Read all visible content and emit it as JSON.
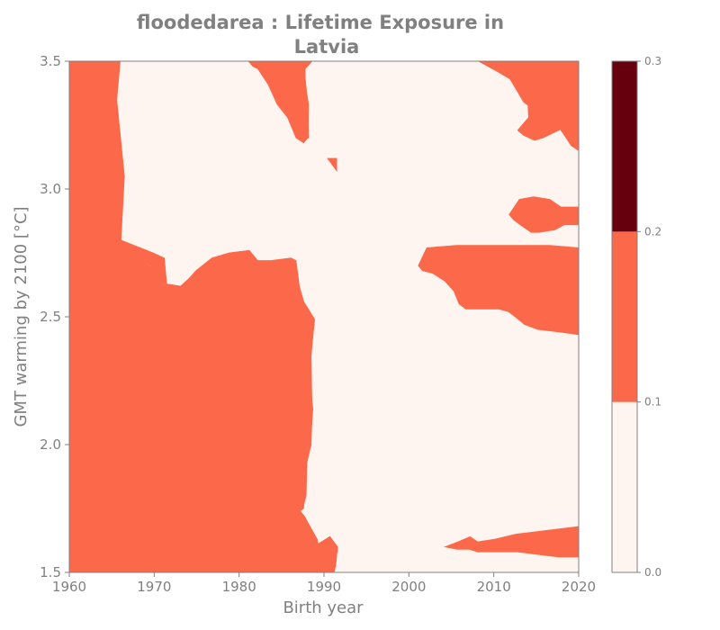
{
  "chart_data": {
    "type": "heatmap",
    "subtype": "filled-contour",
    "title_lines": [
      "floodedarea : Lifetime Exposure in",
      "Latvia"
    ],
    "xlabel": "Birth year",
    "ylabel": "GMT warming by 2100 [°C]",
    "xlim": [
      1960,
      2020
    ],
    "ylim": [
      1.5,
      3.5
    ],
    "xticks": [
      1960,
      1970,
      1980,
      1990,
      2000,
      2010,
      2020
    ],
    "yticks": [
      1.5,
      2.0,
      2.5,
      3.0,
      3.5
    ],
    "xtick_labels": [
      "1960",
      "1970",
      "1980",
      "1990",
      "2000",
      "2010",
      "2020"
    ],
    "ytick_labels": [
      "1.5",
      "2.0",
      "2.5",
      "3.0",
      "3.5"
    ],
    "colorbar": {
      "levels": [
        0.0,
        0.1,
        0.2,
        0.3
      ],
      "tick_labels": [
        "0.0",
        "0.1",
        "0.2",
        "0.3"
      ],
      "colors": [
        "#fff5f0",
        "#fb694a",
        "#67000d"
      ]
    },
    "background_level_color": "#fff5f0",
    "regions": [
      {
        "level": "0.1-0.2",
        "color": "#fb694a",
        "points": [
          [
            1960,
            3.5
          ],
          [
            1965.9,
            3.5
          ],
          [
            1965.6,
            3.35
          ],
          [
            1965.7,
            3.2
          ],
          [
            1966.1,
            3.05
          ],
          [
            1966.1,
            2.78
          ],
          [
            1968,
            2.73
          ],
          [
            1969.6,
            2.7
          ],
          [
            1970.2,
            2.63
          ],
          [
            1971.1,
            2.63
          ],
          [
            1973.1,
            2.62
          ],
          [
            1974.1,
            2.65
          ],
          [
            1974.9,
            2.68
          ],
          [
            1976.8,
            2.73
          ],
          [
            1978.8,
            2.75
          ],
          [
            1981.2,
            2.76
          ],
          [
            1982.1,
            2.72
          ],
          [
            1983.7,
            2.72
          ],
          [
            1986.1,
            2.73
          ],
          [
            1986.7,
            2.72
          ],
          [
            1987.1,
            2.62
          ],
          [
            1987.6,
            2.56
          ],
          [
            1988.9,
            2.49
          ],
          [
            1988.6,
            2.4
          ],
          [
            1988.3,
            2.26
          ],
          [
            1988.7,
            2.14
          ],
          [
            1988.4,
            2.0
          ],
          [
            1988.1,
            1.97
          ],
          [
            1987.9,
            1.89
          ],
          [
            1987.6,
            1.75
          ],
          [
            1987.2,
            1.74
          ],
          [
            1987.7,
            1.72
          ],
          [
            1989.2,
            1.63
          ],
          [
            1989.3,
            1.61
          ],
          [
            1990.7,
            1.64
          ],
          [
            1991.6,
            1.6
          ],
          [
            1991.6,
            1.58
          ],
          [
            1990.4,
            1.52
          ],
          [
            1989.2,
            1.5
          ],
          [
            1967.3,
            1.5
          ],
          [
            1967.3,
            1.6
          ],
          [
            1966.8,
            1.66
          ],
          [
            1966.2,
            1.78
          ],
          [
            1966,
            1.87
          ],
          [
            1966.5,
            1.97
          ],
          [
            1967.1,
            2.0
          ],
          [
            1968.1,
            2.09
          ],
          [
            1969.1,
            2.17
          ],
          [
            1970,
            2.2
          ],
          [
            1970.4,
            2.24
          ],
          [
            1970.9,
            2.37
          ],
          [
            1971.2,
            2.5
          ],
          [
            1971.5,
            2.62
          ],
          [
            1971.2,
            2.73
          ],
          [
            1969.9,
            2.75
          ],
          [
            1966.1,
            2.8
          ],
          [
            1966.5,
            3.05
          ],
          [
            1965.6,
            3.35
          ],
          [
            1966,
            3.5
          ],
          [
            1960,
            3.5
          ]
        ]
      },
      {
        "level": "0.1-0.2",
        "color": "#fb694a",
        "points": [
          [
            1960,
            1.5
          ],
          [
            1967.9,
            1.5
          ],
          [
            1968.2,
            1.61
          ],
          [
            1966.9,
            1.72
          ],
          [
            1966.2,
            1.82
          ],
          [
            1966.2,
            1.92
          ],
          [
            1966.8,
            1.98
          ],
          [
            1967.6,
            2.01
          ],
          [
            1968.8,
            2.07
          ],
          [
            1969.6,
            2.12
          ],
          [
            1970.4,
            2.2
          ],
          [
            1970.6,
            2.29
          ],
          [
            1971.2,
            2.36
          ],
          [
            1971.5,
            2.43
          ],
          [
            1971.2,
            2.5
          ],
          [
            1971.4,
            2.6
          ],
          [
            1971.1,
            2.63
          ],
          [
            1969.9,
            2.69
          ],
          [
            1968.5,
            2.72
          ],
          [
            1966.1,
            2.78
          ],
          [
            1966.1,
            3.05
          ],
          [
            1965.6,
            3.35
          ],
          [
            1965.9,
            3.5
          ],
          [
            1960,
            3.5
          ],
          [
            1960,
            1.5
          ]
        ]
      },
      {
        "level": "0.1-0.2",
        "color": "#fb694a",
        "points": [
          [
            1971.2,
            2.63
          ],
          [
            1973.1,
            2.62
          ],
          [
            1974.2,
            2.65
          ],
          [
            1974.9,
            2.68
          ],
          [
            1976.8,
            2.73
          ],
          [
            1978.8,
            2.75
          ],
          [
            1981.2,
            2.76
          ],
          [
            1982.2,
            2.72
          ],
          [
            1983.7,
            2.72
          ],
          [
            1986.1,
            2.73
          ],
          [
            1986.7,
            2.72
          ],
          [
            1987.1,
            2.62
          ],
          [
            1987.6,
            2.56
          ],
          [
            1988.9,
            2.49
          ],
          [
            1988.5,
            2.35
          ],
          [
            1988.6,
            2.13
          ],
          [
            1988.5,
            2.0
          ],
          [
            1988,
            1.93
          ],
          [
            1987.9,
            1.8
          ],
          [
            1987.5,
            1.75
          ],
          [
            1985.6,
            1.73
          ],
          [
            1984.5,
            1.77
          ],
          [
            1983.6,
            1.77
          ],
          [
            1982.9,
            1.75
          ],
          [
            1982.2,
            1.78
          ],
          [
            1980.2,
            1.78
          ],
          [
            1978.5,
            1.78
          ],
          [
            1978.2,
            1.75
          ],
          [
            1977.5,
            1.7
          ],
          [
            1976.8,
            1.64
          ],
          [
            1974.6,
            1.6
          ],
          [
            1975.8,
            1.54
          ],
          [
            1976.8,
            1.51
          ],
          [
            1978.5,
            1.52
          ],
          [
            1980.4,
            1.53
          ],
          [
            1982.2,
            1.5
          ],
          [
            1984.1,
            1.53
          ],
          [
            1985.6,
            1.5
          ],
          [
            1987.9,
            1.5
          ],
          [
            1987.6,
            1.58
          ],
          [
            1987.6,
            1.67
          ],
          [
            1986.2,
            1.72
          ],
          [
            1985.3,
            1.74
          ],
          [
            1984.1,
            1.77
          ],
          [
            1983.3,
            1.7
          ],
          [
            1982.8,
            1.8
          ],
          [
            1982.2,
            1.86
          ],
          [
            1981.6,
            1.82
          ],
          [
            1980.6,
            1.8
          ],
          [
            1979.9,
            1.85
          ],
          [
            1979.2,
            1.89
          ],
          [
            1978.2,
            1.92
          ],
          [
            1977.2,
            1.95
          ],
          [
            1976.2,
            1.97
          ],
          [
            1974.6,
            1.98
          ],
          [
            1972.6,
            2.0
          ],
          [
            1971.5,
            2.0
          ],
          [
            1971,
            2.06
          ],
          [
            1970.9,
            2.2
          ],
          [
            1971.2,
            2.45
          ],
          [
            1971.2,
            2.63
          ]
        ]
      },
      {
        "level": "0.1-0.2",
        "color": "#fb694a",
        "points": [
          [
            1974.6,
            1.6
          ],
          [
            1976.9,
            1.76
          ],
          [
            1979.9,
            1.78
          ],
          [
            1982.7,
            1.68
          ],
          [
            1985.3,
            1.7
          ],
          [
            1986.9,
            1.72
          ],
          [
            1987.9,
            1.65
          ],
          [
            1989.2,
            1.61
          ],
          [
            1990.7,
            1.64
          ],
          [
            1991.6,
            1.6
          ],
          [
            1991.4,
            1.53
          ],
          [
            1991.2,
            1.5
          ],
          [
            1989.2,
            1.5
          ],
          [
            1989.2,
            1.55
          ],
          [
            1988.3,
            1.5
          ],
          [
            1983.8,
            1.5
          ],
          [
            1982.2,
            1.5
          ],
          [
            1980.3,
            1.53
          ],
          [
            1978.5,
            1.52
          ],
          [
            1976.8,
            1.51
          ],
          [
            1975.8,
            1.54
          ],
          [
            1974.6,
            1.6
          ]
        ]
      },
      {
        "level": "0.1-0.2",
        "color": "#fb694a",
        "points": [
          [
            1981.1,
            3.5
          ],
          [
            1988.6,
            3.5
          ],
          [
            1987.8,
            3.47
          ],
          [
            1987.8,
            3.41
          ],
          [
            1988.2,
            3.33
          ],
          [
            1988.1,
            3.2
          ],
          [
            1987.6,
            3.18
          ],
          [
            1986.7,
            3.2
          ],
          [
            1985.7,
            3.28
          ],
          [
            1984.5,
            3.33
          ],
          [
            1983.4,
            3.41
          ],
          [
            1982.2,
            3.47
          ],
          [
            1981.6,
            3.48
          ],
          [
            1981.1,
            3.5
          ]
        ]
      },
      {
        "level": "0.1-0.2",
        "color": "#fb694a",
        "points": [
          [
            1981.1,
            3.5
          ],
          [
            1987.6,
            3.5
          ],
          [
            1988.1,
            3.33
          ],
          [
            1988.2,
            3.2
          ],
          [
            1987.5,
            3.19
          ],
          [
            1987.1,
            3.23
          ],
          [
            1985.8,
            3.3
          ],
          [
            1984.6,
            3.36
          ],
          [
            1983.3,
            3.43
          ],
          [
            1982.6,
            3.47
          ],
          [
            1981.5,
            3.5
          ]
        ]
      },
      {
        "level": "0.1-0.2",
        "color": "#fb694a",
        "points": [
          [
            1990.4,
            3.12
          ],
          [
            1991.5,
            3.12
          ],
          [
            1991.5,
            3.07
          ],
          [
            1990.4,
            3.12
          ]
        ]
      },
      {
        "level": "0.1-0.2",
        "color": "#fb694a",
        "points": [
          [
            2008.2,
            3.5
          ],
          [
            2020,
            3.5
          ],
          [
            2020,
            3.15
          ],
          [
            2019.1,
            3.17
          ],
          [
            2017.5,
            3.25
          ],
          [
            2015.1,
            3.3
          ],
          [
            2013.5,
            3.34
          ],
          [
            2012.8,
            3.38
          ],
          [
            2011.9,
            3.43
          ],
          [
            2010.4,
            3.46
          ],
          [
            2008.2,
            3.5
          ]
        ]
      },
      {
        "level": "0.1-0.2",
        "color": "#fb694a",
        "points": [
          [
            2008.2,
            3.5
          ],
          [
            2020,
            3.5
          ],
          [
            2020,
            3.15
          ],
          [
            2019.1,
            3.17
          ],
          [
            2018.3,
            3.24
          ],
          [
            2015.8,
            3.2
          ],
          [
            2014.8,
            3.19
          ],
          [
            2013.5,
            3.21
          ],
          [
            2012.8,
            3.23
          ],
          [
            2014.1,
            3.28
          ],
          [
            2014,
            3.34
          ],
          [
            2013.2,
            3.39
          ],
          [
            2012,
            3.43
          ],
          [
            2010.4,
            3.46
          ],
          [
            2008.2,
            3.5
          ]
        ]
      },
      {
        "level": "0.1-0.2",
        "color": "#fb694a",
        "points": [
          [
            2011.8,
            2.9
          ],
          [
            2013,
            2.96
          ],
          [
            2014.7,
            2.97
          ],
          [
            2016.6,
            2.96
          ],
          [
            2017.9,
            2.93
          ],
          [
            2020,
            2.93
          ],
          [
            2020,
            2.86
          ],
          [
            2018.3,
            2.86
          ],
          [
            2017.2,
            2.84
          ],
          [
            2015.3,
            2.83
          ],
          [
            2014.4,
            2.83
          ],
          [
            2013.1,
            2.86
          ],
          [
            2012.3,
            2.88
          ],
          [
            2011.8,
            2.9
          ]
        ]
      },
      {
        "level": "0.1-0.2",
        "color": "#fb694a",
        "points": [
          [
            2001.1,
            2.7
          ],
          [
            2002.1,
            2.77
          ],
          [
            2005.6,
            2.78
          ],
          [
            2009.1,
            2.78
          ],
          [
            2013.2,
            2.78
          ],
          [
            2016.6,
            2.78
          ],
          [
            2020,
            2.77
          ],
          [
            2020,
            2.43
          ],
          [
            2017.7,
            2.44
          ],
          [
            2015.2,
            2.45
          ],
          [
            2013.6,
            2.47
          ],
          [
            2012.5,
            2.5
          ],
          [
            2011.7,
            2.52
          ],
          [
            2010.6,
            2.53
          ],
          [
            2008.8,
            2.53
          ],
          [
            2006.7,
            2.53
          ],
          [
            2005.9,
            2.55
          ],
          [
            2005.3,
            2.6
          ],
          [
            2004.2,
            2.64
          ],
          [
            2002.8,
            2.67
          ],
          [
            2001.6,
            2.68
          ],
          [
            2001.1,
            2.7
          ]
        ]
      },
      {
        "level": "0.1-0.2",
        "color": "#fb694a",
        "points": [
          [
            2004.2,
            1.6
          ],
          [
            2005.8,
            1.62
          ],
          [
            2007.2,
            1.64
          ],
          [
            2008.1,
            1.62
          ],
          [
            2010.1,
            1.63
          ],
          [
            2012.6,
            1.65
          ],
          [
            2015.1,
            1.66
          ],
          [
            2017.6,
            1.67
          ],
          [
            2020,
            1.68
          ],
          [
            2020,
            1.56
          ],
          [
            2017.6,
            1.56
          ],
          [
            2015.1,
            1.57
          ],
          [
            2012.8,
            1.58
          ],
          [
            2010.4,
            1.58
          ],
          [
            2008.1,
            1.58
          ],
          [
            2007.1,
            1.59
          ],
          [
            2005.7,
            1.59
          ],
          [
            2004.2,
            1.6
          ]
        ]
      }
    ]
  }
}
